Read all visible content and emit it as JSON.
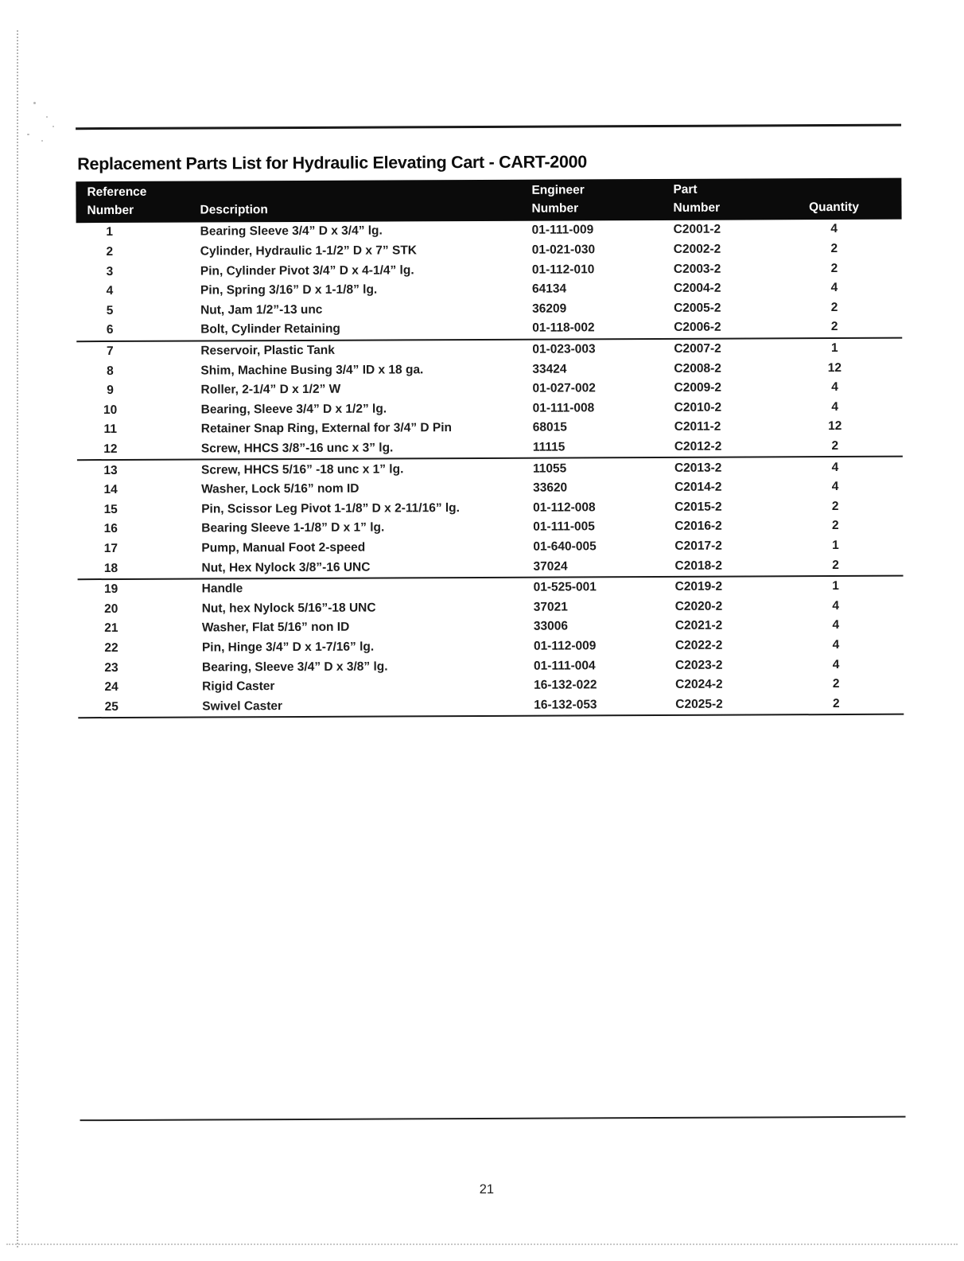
{
  "page": {
    "title": "Replacement Parts List for Hydraulic Elevating Cart - CART-2000",
    "page_number": "21"
  },
  "colors": {
    "header_bg": "#0b0b0b",
    "header_text": "#ffffff",
    "body_text": "#1c1c1c"
  },
  "table": {
    "headers": {
      "ref_line1": "Reference",
      "ref_line2": "Number",
      "description": "Description",
      "engineer_line1": "Engineer",
      "engineer_line2": "Number",
      "part_line1": "Part",
      "part_line2": "Number",
      "quantity": "Quantity"
    },
    "group_breaks_after": [
      "6",
      "12",
      "18"
    ],
    "rows": [
      {
        "ref": "1",
        "description": "Bearing Sleeve 3/4” D x 3/4” lg.",
        "engineer": "01-111-009",
        "part": "C2001-2",
        "qty": "4"
      },
      {
        "ref": "2",
        "description": "Cylinder, Hydraulic 1-1/2” D x 7” STK",
        "engineer": "01-021-030",
        "part": "C2002-2",
        "qty": "2"
      },
      {
        "ref": "3",
        "description": "Pin, Cylinder Pivot 3/4” D x 4-1/4” lg.",
        "engineer": "01-112-010",
        "part": "C2003-2",
        "qty": "2"
      },
      {
        "ref": "4",
        "description": "Pin, Spring 3/16” D x 1-1/8” lg.",
        "engineer": "64134",
        "part": "C2004-2",
        "qty": "4"
      },
      {
        "ref": "5",
        "description": "Nut, Jam 1/2”-13 unc",
        "engineer": "36209",
        "part": "C2005-2",
        "qty": "2"
      },
      {
        "ref": "6",
        "description": "Bolt, Cylinder Retaining",
        "engineer": "01-118-002",
        "part": "C2006-2",
        "qty": "2"
      },
      {
        "ref": "7",
        "description": "Reservoir, Plastic Tank",
        "engineer": "01-023-003",
        "part": "C2007-2",
        "qty": "1"
      },
      {
        "ref": "8",
        "description": "Shim, Machine Busing 3/4” ID x 18 ga.",
        "engineer": "33424",
        "part": "C2008-2",
        "qty": "12"
      },
      {
        "ref": "9",
        "description": "Roller, 2-1/4” D x 1/2” W",
        "engineer": "01-027-002",
        "part": "C2009-2",
        "qty": "4"
      },
      {
        "ref": "10",
        "description": "Bearing, Sleeve 3/4” D x 1/2” lg.",
        "engineer": "01-111-008",
        "part": "C2010-2",
        "qty": "4"
      },
      {
        "ref": "11",
        "description": "Retainer Snap Ring, External for 3/4” D Pin",
        "engineer": "68015",
        "part": "C2011-2",
        "qty": "12"
      },
      {
        "ref": "12",
        "description": "Screw, HHCS 3/8”-16 unc x 3” lg.",
        "engineer": "11115",
        "part": "C2012-2",
        "qty": "2"
      },
      {
        "ref": "13",
        "description": "Screw, HHCS 5/16” -18 unc x 1” lg.",
        "engineer": "11055",
        "part": "C2013-2",
        "qty": "4"
      },
      {
        "ref": "14",
        "description": "Washer, Lock 5/16” nom ID",
        "engineer": "33620",
        "part": "C2014-2",
        "qty": "4"
      },
      {
        "ref": "15",
        "description": "Pin, Scissor Leg Pivot 1-1/8” D x 2-11/16” lg.",
        "engineer": "01-112-008",
        "part": "C2015-2",
        "qty": "2"
      },
      {
        "ref": "16",
        "description": "Bearing Sleeve 1-1/8” D x 1” lg.",
        "engineer": "01-111-005",
        "part": "C2016-2",
        "qty": "2"
      },
      {
        "ref": "17",
        "description": "Pump, Manual Foot 2-speed",
        "engineer": "01-640-005",
        "part": "C2017-2",
        "qty": "1"
      },
      {
        "ref": "18",
        "description": "Nut, Hex Nylock 3/8”-16 UNC",
        "engineer": "37024",
        "part": "C2018-2",
        "qty": "2"
      },
      {
        "ref": "19",
        "description": "Handle",
        "engineer": "01-525-001",
        "part": "C2019-2",
        "qty": "1"
      },
      {
        "ref": "20",
        "description": "Nut, hex Nylock 5/16”-18 UNC",
        "engineer": "37021",
        "part": "C2020-2",
        "qty": "4"
      },
      {
        "ref": "21",
        "description": "Washer, Flat 5/16” non ID",
        "engineer": "33006",
        "part": "C2021-2",
        "qty": "4"
      },
      {
        "ref": "22",
        "description": "Pin, Hinge 3/4” D x 1-7/16” lg.",
        "engineer": "01-112-009",
        "part": "C2022-2",
        "qty": "4"
      },
      {
        "ref": "23",
        "description": "Bearing, Sleeve 3/4” D x 3/8” lg.",
        "engineer": "01-111-004",
        "part": "C2023-2",
        "qty": "4"
      },
      {
        "ref": "24",
        "description": "Rigid Caster",
        "engineer": "16-132-022",
        "part": "C2024-2",
        "qty": "2"
      },
      {
        "ref": "25",
        "description": "Swivel Caster",
        "engineer": "16-132-053",
        "part": "C2025-2",
        "qty": "2"
      }
    ]
  }
}
